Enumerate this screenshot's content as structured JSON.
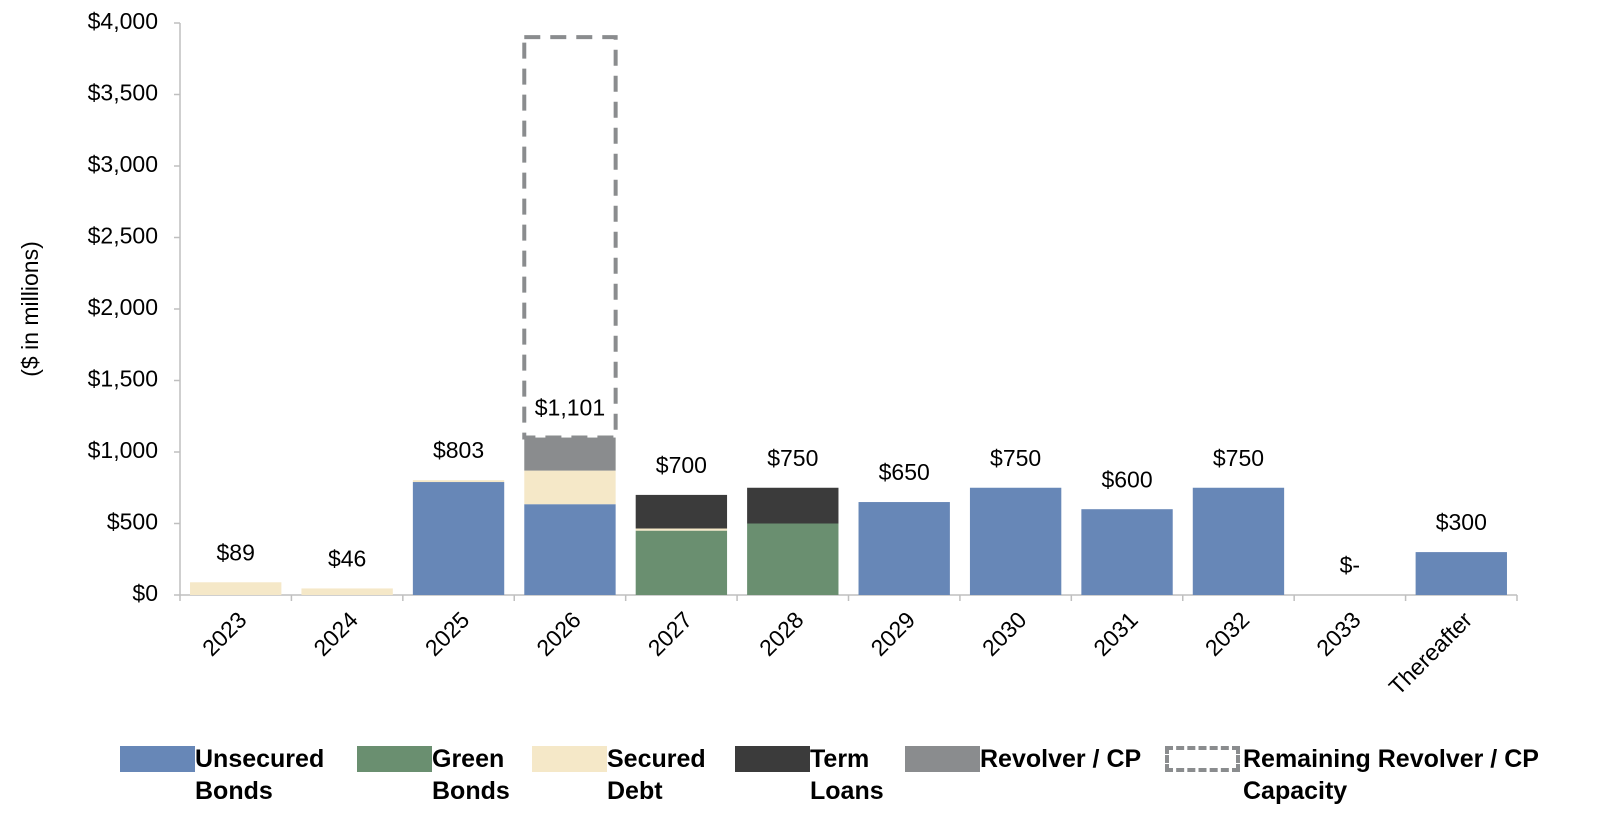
{
  "chart_data": {
    "type": "stacked_bar",
    "y_label": "($ in millions)",
    "categories": [
      "2023",
      "2024",
      "2025",
      "2026",
      "2027",
      "2028",
      "2029",
      "2030",
      "2031",
      "2032",
      "2033",
      "Thereafter"
    ],
    "series": [
      {
        "name": "Unsecured Bonds",
        "color": "#6787b7",
        "values": [
          0,
          0,
          790,
          635,
          0,
          0,
          650,
          750,
          600,
          750,
          0,
          300
        ]
      },
      {
        "name": "Green Bonds",
        "color": "#6a8f70",
        "values": [
          0,
          0,
          0,
          0,
          450,
          500,
          0,
          0,
          0,
          0,
          0,
          0
        ]
      },
      {
        "name": "Secured Debt",
        "color": "#f5e8c8",
        "values": [
          89,
          46,
          13,
          235,
          15,
          0,
          0,
          0,
          0,
          0,
          0,
          0
        ]
      },
      {
        "name": "Term Loans",
        "color": "#3b3b3b",
        "values": [
          0,
          0,
          0,
          0,
          235,
          250,
          0,
          0,
          0,
          0,
          0,
          0
        ]
      },
      {
        "name": "Revolver / CP",
        "color": "#8a8c8e",
        "values": [
          0,
          0,
          0,
          231,
          0,
          0,
          0,
          0,
          0,
          0,
          0,
          0
        ]
      },
      {
        "name": "Remaining Revolver / CP Capacity",
        "color": "#8a8c8e",
        "dashed": true,
        "values": [
          0,
          0,
          0,
          2800,
          0,
          0,
          0,
          0,
          0,
          0,
          0,
          0
        ]
      }
    ],
    "totals": {
      "values": [
        89,
        46,
        803,
        1101,
        700,
        750,
        650,
        750,
        600,
        750,
        0,
        300
      ],
      "value_labels": [
        "$89",
        "$46",
        "$803",
        "$1,101",
        "$700",
        "$750",
        "$650",
        "$750",
        "$600",
        "$750",
        "$-",
        "$300"
      ]
    },
    "ylim": [
      0,
      4000
    ],
    "yticks": [
      {
        "value": 0,
        "label": "$0"
      },
      {
        "value": 500,
        "label": "$500"
      },
      {
        "value": 1000,
        "label": "$1,000"
      },
      {
        "value": 1500,
        "label": "$1,500"
      },
      {
        "value": 2000,
        "label": "$2,000"
      },
      {
        "value": 2500,
        "label": "$2,500"
      },
      {
        "value": 3000,
        "label": "$3,000"
      },
      {
        "value": 3500,
        "label": "$3,500"
      },
      {
        "value": 4000,
        "label": "$4,000"
      }
    ],
    "grid": false,
    "legend": "bottom"
  }
}
